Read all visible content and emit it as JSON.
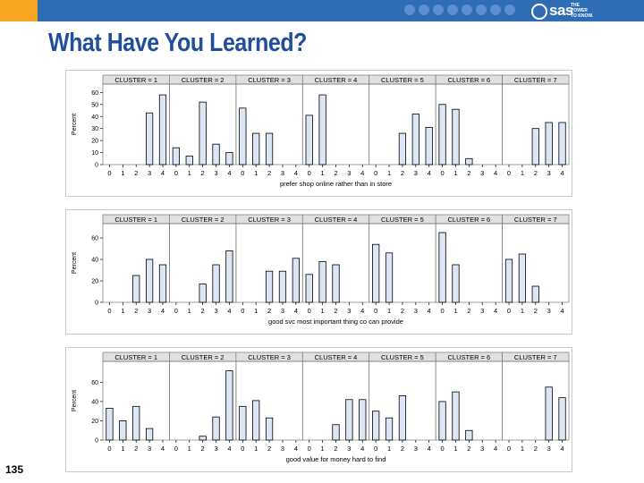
{
  "slide": {
    "title": "What Have You Learned?",
    "number": "135",
    "brand": "sas",
    "tagline": [
      "THE",
      "POWER",
      "TO KNOW."
    ]
  },
  "colors": {
    "header_blue": "#2e6db4",
    "header_orange": "#f5a623",
    "title_blue": "#1f4e9c",
    "bar_fill": "#dce6f4",
    "panel_header": "#e0e0e0"
  },
  "chart_data": [
    {
      "type": "bar",
      "panel_by": "cluster",
      "panels": [
        "CLUSTER = 1",
        "CLUSTER = 2",
        "CLUSTER = 3",
        "CLUSTER = 4",
        "CLUSTER = 5",
        "CLUSTER = 6",
        "CLUSTER = 7"
      ],
      "categories": [
        "0",
        "1",
        "2",
        "3",
        "4"
      ],
      "values": [
        [
          0,
          0,
          0,
          43,
          58
        ],
        [
          14,
          7,
          52,
          17,
          10
        ],
        [
          47,
          26,
          26,
          0,
          0
        ],
        [
          41,
          58,
          0,
          0,
          0
        ],
        [
          0,
          0,
          26,
          42,
          31
        ],
        [
          50,
          46,
          5,
          0,
          0
        ],
        [
          0,
          0,
          30,
          35,
          35
        ]
      ],
      "xlabel": "prefer shop online rather than in store",
      "ylabel": "Percent",
      "yticks": [
        0,
        10,
        20,
        30,
        40,
        50,
        60
      ],
      "ylim": [
        0,
        64
      ]
    },
    {
      "type": "bar",
      "panel_by": "cluster",
      "panels": [
        "CLUSTER = 1",
        "CLUSTER = 2",
        "CLUSTER = 3",
        "CLUSTER = 4",
        "CLUSTER = 5",
        "CLUSTER = 6",
        "CLUSTER = 7"
      ],
      "categories": [
        "0",
        "1",
        "2",
        "3",
        "4"
      ],
      "values": [
        [
          0,
          0,
          25,
          40,
          35
        ],
        [
          0,
          0,
          17,
          35,
          48
        ],
        [
          0,
          0,
          29,
          29,
          41
        ],
        [
          26,
          38,
          35,
          0,
          0
        ],
        [
          54,
          46,
          0,
          0,
          0
        ],
        [
          65,
          35,
          0,
          0,
          0
        ],
        [
          40,
          45,
          15,
          0,
          0
        ]
      ],
      "xlabel": "good svc most important thing co can provide",
      "ylabel": "Percent",
      "yticks": [
        0,
        20,
        40,
        60
      ],
      "ylim": [
        0,
        70
      ]
    },
    {
      "type": "bar",
      "panel_by": "cluster",
      "panels": [
        "CLUSTER = 1",
        "CLUSTER = 2",
        "CLUSTER = 3",
        "CLUSTER = 4",
        "CLUSTER = 5",
        "CLUSTER = 6",
        "CLUSTER = 7"
      ],
      "categories": [
        "0",
        "1",
        "2",
        "3",
        "4"
      ],
      "values": [
        [
          33,
          20,
          35,
          12,
          0
        ],
        [
          0,
          0,
          4,
          24,
          72
        ],
        [
          35,
          41,
          23,
          0,
          0
        ],
        [
          0,
          0,
          16,
          42,
          42
        ],
        [
          30,
          23,
          46,
          0,
          0
        ],
        [
          40,
          50,
          10,
          0,
          0
        ],
        [
          0,
          0,
          0,
          55,
          44
        ]
      ],
      "xlabel": "good value for money hard to find",
      "ylabel": "Percent",
      "yticks": [
        0,
        20,
        40,
        60
      ],
      "ylim": [
        0,
        78
      ]
    }
  ]
}
